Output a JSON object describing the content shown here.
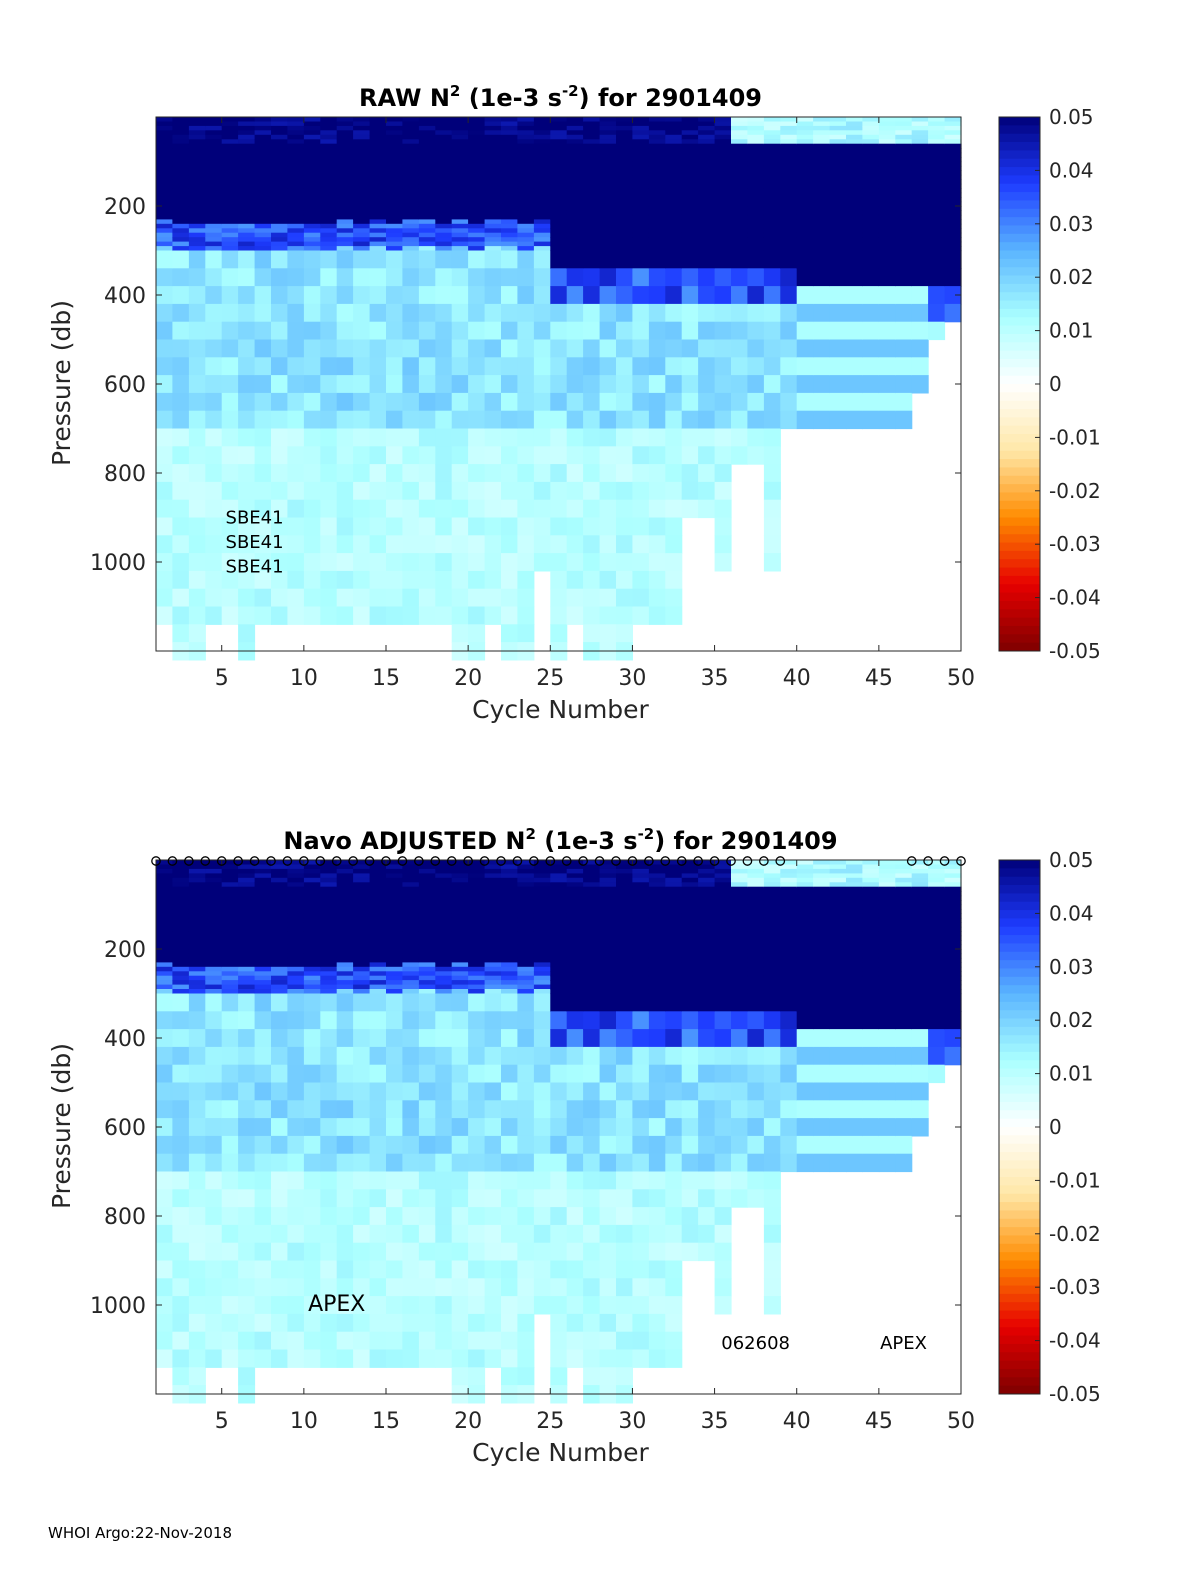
{
  "footer": "WHOI Argo:22-Nov-2018",
  "chart_data": [
    {
      "type": "heatmap",
      "title_parts": [
        "RAW N",
        "2",
        " (1e-3 s",
        "-2",
        ") for 2901409"
      ],
      "xlabel": "Cycle Number",
      "ylabel": "Pressure (db)",
      "xlim": [
        1,
        50
      ],
      "ylim": [
        0,
        1200
      ],
      "y_reversed": true,
      "xticks": [
        5,
        10,
        15,
        20,
        25,
        30,
        35,
        40,
        45,
        50
      ],
      "yticks": [
        200,
        400,
        600,
        800,
        1000
      ],
      "colorbar": {
        "limits": [
          -0.05,
          0.05
        ],
        "ticks": [
          "0.05",
          "0.04",
          "0.03",
          "0.02",
          "0.01",
          "0",
          "-0.01",
          "-0.02",
          "-0.03",
          "-0.04",
          "-0.05"
        ],
        "colormap": [
          "#7f0000",
          "#e60000",
          "#ff8c00",
          "#ffe8a8",
          "#ffffff",
          "#aaffff",
          "#5ab4ff",
          "#1e3cff",
          "#00007a"
        ]
      },
      "profile_max_depth": [
        0,
        1120,
        1200,
        1200,
        1120,
        1120,
        1200,
        1120,
        1120,
        1120,
        1120,
        1120,
        1120,
        1120,
        1120,
        1120,
        1120,
        1120,
        1120,
        1200,
        1200,
        1120,
        1200,
        1200,
        1000,
        1200,
        1120,
        1200,
        1200,
        1200,
        1120,
        1120,
        1120,
        900,
        880,
        1000,
        780,
        780,
        1000,
        680,
        680,
        680,
        680,
        680,
        680,
        680,
        680,
        600,
        500,
        450,
        400
      ],
      "annotations": [
        {
          "text": "SBE41",
          "x": 7,
          "y": 900
        },
        {
          "text": "SBE41",
          "x": 7,
          "y": 955
        },
        {
          "text": "SBE41",
          "x": 7,
          "y": 1010
        }
      ],
      "markers": false
    },
    {
      "type": "heatmap",
      "title_parts": [
        "Navo  ADJUSTED N",
        "2",
        " (1e-3 s",
        "-2",
        ") for 2901409"
      ],
      "xlabel": "Cycle Number",
      "ylabel": "Pressure (db)",
      "xlim": [
        1,
        50
      ],
      "ylim": [
        0,
        1200
      ],
      "y_reversed": true,
      "xticks": [
        5,
        10,
        15,
        20,
        25,
        30,
        35,
        40,
        45,
        50
      ],
      "yticks": [
        200,
        400,
        600,
        800,
        1000
      ],
      "colorbar": {
        "limits": [
          -0.05,
          0.05
        ],
        "ticks": [
          "0.05",
          "0.04",
          "0.03",
          "0.02",
          "0.01",
          "0",
          "-0.01",
          "-0.02",
          "-0.03",
          "-0.04",
          "-0.05"
        ],
        "colormap": [
          "#7f0000",
          "#e60000",
          "#ff8c00",
          "#ffe8a8",
          "#ffffff",
          "#aaffff",
          "#5ab4ff",
          "#1e3cff",
          "#00007a"
        ]
      },
      "profile_max_depth": [
        0,
        1120,
        1200,
        1200,
        1120,
        1120,
        1200,
        1120,
        1120,
        1120,
        1120,
        1120,
        1120,
        1120,
        1120,
        1120,
        1120,
        1120,
        1120,
        1200,
        1200,
        1120,
        1200,
        1200,
        1000,
        1200,
        1120,
        1200,
        1200,
        1200,
        1120,
        1120,
        1120,
        900,
        880,
        1000,
        780,
        780,
        1000,
        680,
        680,
        680,
        680,
        680,
        680,
        680,
        680,
        600,
        500,
        450,
        400
      ],
      "annotations": [
        {
          "text": "APEX",
          "x": 12,
          "y": 1000,
          "size": "big"
        },
        {
          "text": "062608",
          "x": 37.5,
          "y": 1085
        },
        {
          "text": "APEX",
          "x": 46.5,
          "y": 1085
        }
      ],
      "markers": true,
      "marker_cycles": [
        1,
        2,
        3,
        4,
        5,
        6,
        7,
        8,
        9,
        10,
        11,
        12,
        13,
        14,
        15,
        16,
        17,
        18,
        19,
        20,
        21,
        22,
        23,
        24,
        25,
        26,
        27,
        28,
        29,
        30,
        31,
        32,
        33,
        34,
        35,
        36,
        37,
        38,
        39,
        47,
        48,
        49,
        50
      ]
    }
  ]
}
